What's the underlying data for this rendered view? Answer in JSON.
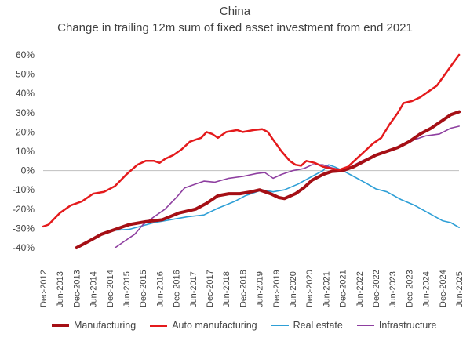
{
  "chart_data": {
    "type": "line",
    "title": "China",
    "subtitle": "Change in trailing 12m sum of fixed asset investment from end 2021",
    "ylim": [
      -40,
      60
    ],
    "yticks": [
      "60%",
      "50%",
      "40%",
      "30%",
      "20%",
      "10%",
      "0%",
      "-10%",
      "-20%",
      "-30%",
      "-40%"
    ],
    "ytick_values": [
      60,
      50,
      40,
      30,
      20,
      10,
      0,
      -10,
      -20,
      -30,
      -40
    ],
    "x_labels": [
      "Dec-2012",
      "Jun-2013",
      "Dec-2013",
      "Jun-2014",
      "Dec-2014",
      "Jun-2015",
      "Dec-2015",
      "Jun-2016",
      "Dec-2016",
      "Jun-2017",
      "Dec-2017",
      "Jun-2018",
      "Dec-2018",
      "Jun-2019",
      "Dec-2019",
      "Jun-2020",
      "Dec-2020",
      "Jun-2021",
      "Dec-2021",
      "Jun-2022",
      "Dec-2022",
      "Jun-2023",
      "Dec-2023",
      "Jun-2024",
      "Dec-2024",
      "Jun-2025"
    ],
    "x_start": 2012.917,
    "x_end": 2025.417,
    "grid": false,
    "legend_position": "bottom",
    "series": [
      {
        "name": "Manufacturing",
        "color": "#a50f15",
        "width": 4,
        "points": [
          [
            2013.92,
            -40
          ],
          [
            2014.25,
            -37
          ],
          [
            2014.67,
            -33
          ],
          [
            2015.0,
            -31
          ],
          [
            2015.5,
            -28
          ],
          [
            2016.0,
            -26.5
          ],
          [
            2016.5,
            -25.5
          ],
          [
            2017.0,
            -22
          ],
          [
            2017.5,
            -20
          ],
          [
            2017.83,
            -17
          ],
          [
            2018.17,
            -13
          ],
          [
            2018.5,
            -12
          ],
          [
            2018.83,
            -12
          ],
          [
            2019.17,
            -11
          ],
          [
            2019.42,
            -10
          ],
          [
            2019.75,
            -12
          ],
          [
            2020.0,
            -14
          ],
          [
            2020.17,
            -14.5
          ],
          [
            2020.5,
            -12
          ],
          [
            2020.75,
            -9
          ],
          [
            2021.0,
            -5
          ],
          [
            2021.33,
            -2
          ],
          [
            2021.58,
            -0.5
          ],
          [
            2021.92,
            0
          ],
          [
            2022.25,
            2
          ],
          [
            2022.58,
            5
          ],
          [
            2022.92,
            8
          ],
          [
            2023.25,
            10
          ],
          [
            2023.58,
            12
          ],
          [
            2023.92,
            15
          ],
          [
            2024.25,
            19
          ],
          [
            2024.58,
            22
          ],
          [
            2024.92,
            26
          ],
          [
            2025.17,
            29
          ],
          [
            2025.42,
            30.5
          ]
        ]
      },
      {
        "name": "Auto manufacturing",
        "color": "#e41a1c",
        "width": 2.5,
        "points": [
          [
            2012.92,
            -29
          ],
          [
            2013.08,
            -28
          ],
          [
            2013.42,
            -22
          ],
          [
            2013.75,
            -18
          ],
          [
            2014.08,
            -16
          ],
          [
            2014.42,
            -12
          ],
          [
            2014.75,
            -11
          ],
          [
            2015.08,
            -8
          ],
          [
            2015.42,
            -2
          ],
          [
            2015.75,
            3
          ],
          [
            2016.0,
            5
          ],
          [
            2016.25,
            5
          ],
          [
            2016.42,
            4
          ],
          [
            2016.58,
            6
          ],
          [
            2016.83,
            8
          ],
          [
            2017.08,
            11
          ],
          [
            2017.33,
            15
          ],
          [
            2017.5,
            16
          ],
          [
            2017.67,
            17
          ],
          [
            2017.83,
            20
          ],
          [
            2018.0,
            19
          ],
          [
            2018.17,
            17
          ],
          [
            2018.42,
            20
          ],
          [
            2018.75,
            21
          ],
          [
            2018.92,
            20
          ],
          [
            2019.25,
            21
          ],
          [
            2019.5,
            21.5
          ],
          [
            2019.67,
            20
          ],
          [
            2019.83,
            16
          ],
          [
            2020.08,
            10
          ],
          [
            2020.33,
            5
          ],
          [
            2020.5,
            3
          ],
          [
            2020.67,
            2.5
          ],
          [
            2020.83,
            5
          ],
          [
            2021.08,
            4
          ],
          [
            2021.33,
            2
          ],
          [
            2021.58,
            1
          ],
          [
            2021.83,
            0.5
          ],
          [
            2022.08,
            2
          ],
          [
            2022.33,
            6
          ],
          [
            2022.58,
            10
          ],
          [
            2022.83,
            14
          ],
          [
            2023.08,
            17
          ],
          [
            2023.33,
            24
          ],
          [
            2023.58,
            30
          ],
          [
            2023.75,
            35
          ],
          [
            2024.0,
            36
          ],
          [
            2024.25,
            38
          ],
          [
            2024.5,
            41
          ],
          [
            2024.75,
            44
          ],
          [
            2025.0,
            50
          ],
          [
            2025.25,
            56
          ],
          [
            2025.42,
            60
          ]
        ]
      },
      {
        "name": "Real estate",
        "color": "#2e9fd6",
        "width": 1.6,
        "points": [
          [
            2013.92,
            -40
          ],
          [
            2014.25,
            -37
          ],
          [
            2014.58,
            -34
          ],
          [
            2015.0,
            -31
          ],
          [
            2015.5,
            -30.5
          ],
          [
            2015.83,
            -29
          ],
          [
            2016.25,
            -27
          ],
          [
            2016.75,
            -25.5
          ],
          [
            2017.25,
            -24
          ],
          [
            2017.75,
            -23
          ],
          [
            2018.17,
            -19.5
          ],
          [
            2018.67,
            -16
          ],
          [
            2019.0,
            -13
          ],
          [
            2019.5,
            -10
          ],
          [
            2019.83,
            -11
          ],
          [
            2020.17,
            -10
          ],
          [
            2020.58,
            -7
          ],
          [
            2021.0,
            -3
          ],
          [
            2021.33,
            0
          ],
          [
            2021.5,
            3
          ],
          [
            2021.67,
            2
          ],
          [
            2021.92,
            0
          ],
          [
            2022.25,
            -3
          ],
          [
            2022.67,
            -7
          ],
          [
            2022.92,
            -9.5
          ],
          [
            2023.25,
            -11
          ],
          [
            2023.67,
            -15
          ],
          [
            2024.08,
            -18
          ],
          [
            2024.5,
            -22
          ],
          [
            2024.92,
            -26
          ],
          [
            2025.17,
            -27
          ],
          [
            2025.42,
            -29.5
          ]
        ]
      },
      {
        "name": "Infrastructure",
        "color": "#8e3fa0",
        "width": 1.6,
        "points": [
          [
            2015.08,
            -40
          ],
          [
            2015.33,
            -37
          ],
          [
            2015.67,
            -33
          ],
          [
            2015.92,
            -28
          ],
          [
            2016.25,
            -24
          ],
          [
            2016.58,
            -20
          ],
          [
            2016.92,
            -14
          ],
          [
            2017.17,
            -9
          ],
          [
            2017.5,
            -7
          ],
          [
            2017.75,
            -5.5
          ],
          [
            2018.08,
            -6
          ],
          [
            2018.5,
            -4
          ],
          [
            2018.92,
            -3
          ],
          [
            2019.33,
            -1.5
          ],
          [
            2019.58,
            -1
          ],
          [
            2019.83,
            -4
          ],
          [
            2020.08,
            -2
          ],
          [
            2020.42,
            0
          ],
          [
            2020.75,
            1
          ],
          [
            2021.0,
            3
          ],
          [
            2021.33,
            3
          ],
          [
            2021.58,
            1.5
          ],
          [
            2021.92,
            0
          ],
          [
            2022.17,
            2
          ],
          [
            2022.5,
            5
          ],
          [
            2022.92,
            8
          ],
          [
            2023.33,
            10
          ],
          [
            2023.75,
            13
          ],
          [
            2024.08,
            16
          ],
          [
            2024.42,
            18
          ],
          [
            2024.83,
            19
          ],
          [
            2025.17,
            22
          ],
          [
            2025.42,
            23
          ]
        ]
      }
    ]
  }
}
